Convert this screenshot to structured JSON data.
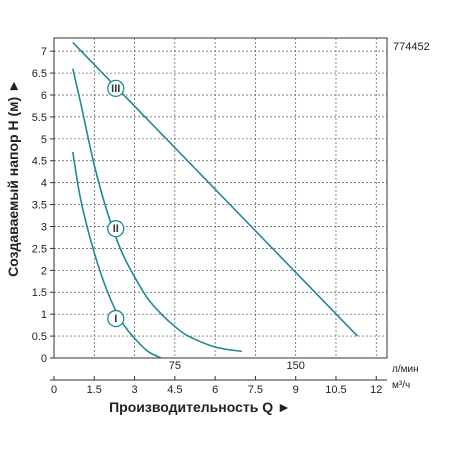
{
  "chart_data": {
    "type": "line",
    "code_label": "774452",
    "ylabel": "Создаваемый напор H (м) ►",
    "xlabel": "Производительность Q ►",
    "y_ticks": [
      "0",
      "0.5",
      "1",
      "1.5",
      "2",
      "2.5",
      "3",
      "3.5",
      "4",
      "4.5",
      "5",
      "5.5",
      "6",
      "6.5",
      "7"
    ],
    "ylim": [
      0,
      7.3
    ],
    "x_ticks_m3h": [
      "0",
      "1.5",
      "3",
      "4.5",
      "6",
      "7.5",
      "9",
      "10.5",
      "12"
    ],
    "xlim_m3h": [
      0,
      12.4
    ],
    "x_unit_m3h": "м³/ч",
    "x_ticks_lmin": [
      "75",
      "150"
    ],
    "x_unit_lmin": "л/мин",
    "grid": true,
    "color": "#1f8a96",
    "series": [
      {
        "name": "I",
        "x": [
          0.7,
          1.0,
          1.5,
          2.0,
          2.5,
          3.0,
          3.5,
          4.0
        ],
        "y": [
          4.7,
          3.6,
          2.4,
          1.5,
          0.85,
          0.45,
          0.15,
          0.0
        ],
        "marker": {
          "x": 2.3,
          "y": 0.9
        }
      },
      {
        "name": "II",
        "x": [
          0.7,
          1.0,
          1.5,
          2.0,
          2.5,
          3.0,
          3.5,
          4.0,
          4.5,
          5.0,
          6.0,
          7.0
        ],
        "y": [
          6.6,
          5.8,
          4.4,
          3.3,
          2.45,
          1.85,
          1.35,
          1.0,
          0.72,
          0.5,
          0.25,
          0.15
        ],
        "marker": {
          "x": 2.3,
          "y": 2.95
        }
      },
      {
        "name": "III",
        "x": [
          0.7,
          11.3
        ],
        "y": [
          7.2,
          0.5
        ],
        "marker": {
          "x": 2.3,
          "y": 6.15
        }
      }
    ]
  }
}
